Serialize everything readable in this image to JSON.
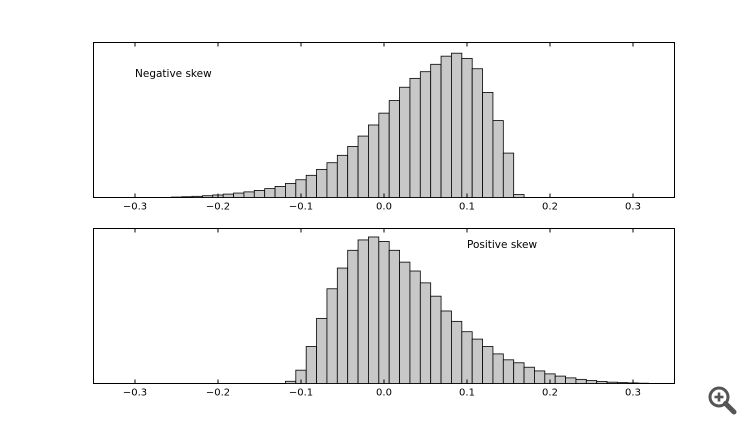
{
  "chart_data": [
    {
      "type": "bar",
      "annotation": "Negative skew",
      "xlim": [
        -0.35,
        0.35
      ],
      "ylim": [
        0,
        1
      ],
      "bin_width": 0.0125,
      "ticks": [
        {
          "value": -0.3,
          "label": "−0.3"
        },
        {
          "value": -0.2,
          "label": "−0.2"
        },
        {
          "value": -0.1,
          "label": "−0.1"
        },
        {
          "value": 0.0,
          "label": "0.0"
        },
        {
          "value": 0.1,
          "label": "0.1"
        },
        {
          "value": 0.2,
          "label": "0.2"
        },
        {
          "value": 0.3,
          "label": "0.3"
        }
      ],
      "bins": [
        {
          "x": -0.25,
          "y": 0.003
        },
        {
          "x": -0.2375,
          "y": 0.005
        },
        {
          "x": -0.225,
          "y": 0.008
        },
        {
          "x": -0.2125,
          "y": 0.012
        },
        {
          "x": -0.2,
          "y": 0.017
        },
        {
          "x": -0.1875,
          "y": 0.023
        },
        {
          "x": -0.175,
          "y": 0.03
        },
        {
          "x": -0.1625,
          "y": 0.038
        },
        {
          "x": -0.15,
          "y": 0.048
        },
        {
          "x": -0.1375,
          "y": 0.06
        },
        {
          "x": -0.125,
          "y": 0.075
        },
        {
          "x": -0.1125,
          "y": 0.095
        },
        {
          "x": -0.1,
          "y": 0.12
        },
        {
          "x": -0.0875,
          "y": 0.15
        },
        {
          "x": -0.075,
          "y": 0.19
        },
        {
          "x": -0.0625,
          "y": 0.235
        },
        {
          "x": -0.05,
          "y": 0.285
        },
        {
          "x": -0.0375,
          "y": 0.345
        },
        {
          "x": -0.025,
          "y": 0.415
        },
        {
          "x": -0.0125,
          "y": 0.49
        },
        {
          "x": 0.0,
          "y": 0.57
        },
        {
          "x": 0.0125,
          "y": 0.655
        },
        {
          "x": 0.025,
          "y": 0.745
        },
        {
          "x": 0.0375,
          "y": 0.805
        },
        {
          "x": 0.05,
          "y": 0.85
        },
        {
          "x": 0.0625,
          "y": 0.9
        },
        {
          "x": 0.075,
          "y": 0.955
        },
        {
          "x": 0.0875,
          "y": 0.975
        },
        {
          "x": 0.1,
          "y": 0.94
        },
        {
          "x": 0.1125,
          "y": 0.87
        },
        {
          "x": 0.125,
          "y": 0.71
        },
        {
          "x": 0.1375,
          "y": 0.52
        },
        {
          "x": 0.15,
          "y": 0.3
        },
        {
          "x": 0.1625,
          "y": 0.02
        }
      ]
    },
    {
      "type": "bar",
      "annotation": "Positive skew",
      "xlim": [
        -0.35,
        0.35
      ],
      "ylim": [
        0,
        1
      ],
      "bin_width": 0.0125,
      "ticks": [
        {
          "value": -0.3,
          "label": "−0.3"
        },
        {
          "value": -0.2,
          "label": "−0.2"
        },
        {
          "value": -0.1,
          "label": "−0.1"
        },
        {
          "value": 0.0,
          "label": "0.0"
        },
        {
          "value": 0.1,
          "label": "0.1"
        },
        {
          "value": 0.2,
          "label": "0.2"
        },
        {
          "value": 0.3,
          "label": "0.3"
        }
      ],
      "bins": [
        {
          "x": -0.1125,
          "y": 0.015
        },
        {
          "x": -0.1,
          "y": 0.09
        },
        {
          "x": -0.0875,
          "y": 0.25
        },
        {
          "x": -0.075,
          "y": 0.44
        },
        {
          "x": -0.0625,
          "y": 0.64
        },
        {
          "x": -0.05,
          "y": 0.78
        },
        {
          "x": -0.0375,
          "y": 0.9
        },
        {
          "x": -0.025,
          "y": 0.97
        },
        {
          "x": -0.0125,
          "y": 0.99
        },
        {
          "x": 0.0,
          "y": 0.96
        },
        {
          "x": 0.0125,
          "y": 0.9
        },
        {
          "x": 0.025,
          "y": 0.82
        },
        {
          "x": 0.0375,
          "y": 0.76
        },
        {
          "x": 0.05,
          "y": 0.68
        },
        {
          "x": 0.0625,
          "y": 0.59
        },
        {
          "x": 0.075,
          "y": 0.49
        },
        {
          "x": 0.0875,
          "y": 0.42
        },
        {
          "x": 0.1,
          "y": 0.35
        },
        {
          "x": 0.1125,
          "y": 0.3
        },
        {
          "x": 0.125,
          "y": 0.25
        },
        {
          "x": 0.1375,
          "y": 0.2
        },
        {
          "x": 0.15,
          "y": 0.16
        },
        {
          "x": 0.1625,
          "y": 0.14
        },
        {
          "x": 0.175,
          "y": 0.11
        },
        {
          "x": 0.1875,
          "y": 0.085
        },
        {
          "x": 0.2,
          "y": 0.065
        },
        {
          "x": 0.2125,
          "y": 0.05
        },
        {
          "x": 0.225,
          "y": 0.038
        },
        {
          "x": 0.2375,
          "y": 0.028
        },
        {
          "x": 0.25,
          "y": 0.02
        },
        {
          "x": 0.2625,
          "y": 0.014
        },
        {
          "x": 0.275,
          "y": 0.009
        },
        {
          "x": 0.2875,
          "y": 0.006
        },
        {
          "x": 0.3,
          "y": 0.004
        },
        {
          "x": 0.3125,
          "y": 0.002
        }
      ]
    }
  ],
  "toolbar": {
    "zoom_icon": "zoom-in-icon",
    "zoom_color": "#555555"
  }
}
